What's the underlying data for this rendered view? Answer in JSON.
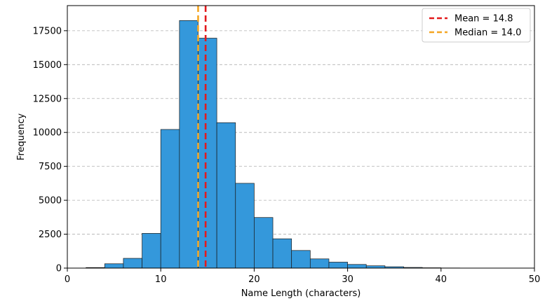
{
  "chart_data": {
    "type": "bar",
    "xlabel": "Name Length (characters)",
    "ylabel": "Frequency",
    "xlim": [
      0,
      50
    ],
    "ylim": [
      0,
      19350
    ],
    "xticks": [
      "0",
      "10",
      "20",
      "30",
      "40",
      "50"
    ],
    "yticks": [
      "0",
      "2500",
      "5000",
      "7500",
      "10000",
      "12500",
      "15000",
      "17500"
    ],
    "grid": "y dashed",
    "bar_color": "#3498db",
    "bins": [
      {
        "x0": 2,
        "x1": 4,
        "value": 40
      },
      {
        "x0": 4,
        "x1": 6,
        "value": 320
      },
      {
        "x0": 6,
        "x1": 8,
        "value": 720
      },
      {
        "x0": 8,
        "x1": 10,
        "value": 2560
      },
      {
        "x0": 10,
        "x1": 12,
        "value": 10220
      },
      {
        "x0": 12,
        "x1": 14,
        "value": 18250
      },
      {
        "x0": 14,
        "x1": 16,
        "value": 16950
      },
      {
        "x0": 16,
        "x1": 18,
        "value": 10720
      },
      {
        "x0": 18,
        "x1": 20,
        "value": 6250
      },
      {
        "x0": 20,
        "x1": 22,
        "value": 3730
      },
      {
        "x0": 22,
        "x1": 24,
        "value": 2160
      },
      {
        "x0": 24,
        "x1": 26,
        "value": 1300
      },
      {
        "x0": 26,
        "x1": 28,
        "value": 680
      },
      {
        "x0": 28,
        "x1": 30,
        "value": 440
      },
      {
        "x0": 30,
        "x1": 32,
        "value": 270
      },
      {
        "x0": 32,
        "x1": 34,
        "value": 170
      },
      {
        "x0": 34,
        "x1": 36,
        "value": 100
      },
      {
        "x0": 36,
        "x1": 38,
        "value": 50
      },
      {
        "x0": 38,
        "x1": 40,
        "value": 25
      },
      {
        "x0": 40,
        "x1": 42,
        "value": 12
      },
      {
        "x0": 42,
        "x1": 44,
        "value": 6
      },
      {
        "x0": 44,
        "x1": 46,
        "value": 3
      },
      {
        "x0": 46,
        "x1": 48,
        "value": 2
      }
    ],
    "reference_lines": [
      {
        "label": "Mean = 14.8",
        "x": 14.8,
        "color": "#e31a1c",
        "style": "dashed"
      },
      {
        "label": "Median = 14.0",
        "x": 14.0,
        "color": "#f5a623",
        "style": "dashed"
      }
    ],
    "legend_position": "top-right"
  }
}
